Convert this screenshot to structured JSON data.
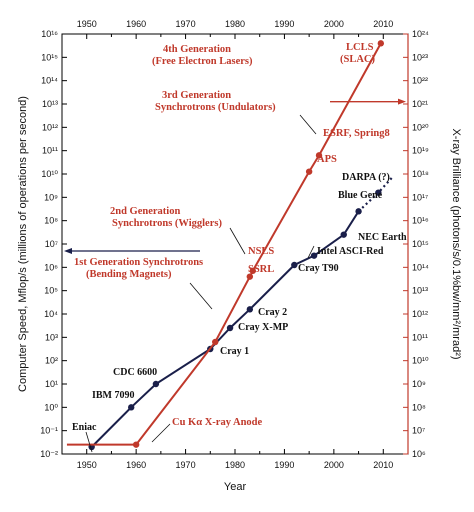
{
  "chart_data": {
    "type": "line",
    "xlabel": "Year",
    "ylabel_left": "Computer Speed, Mflop/s (millions of operations per second)",
    "ylabel_right": "X-ray Brilliance (photons/s/0.1%bw/mm²/mrad²)",
    "xlim": [
      1945,
      2015
    ],
    "x_ticks": [
      "1950",
      "1960",
      "1970",
      "1980",
      "1990",
      "2000",
      "2010"
    ],
    "left_ylim_log10": [
      -2,
      16
    ],
    "right_ylim_log10": [
      6,
      24
    ],
    "left_y_ticks": [
      "10⁻²",
      "10⁻¹",
      "10⁰",
      "10¹",
      "10²",
      "10³",
      "10⁴",
      "10⁵",
      "10⁶",
      "10⁷",
      "10⁸",
      "10⁹",
      "10¹⁰",
      "10¹¹",
      "10¹²",
      "10¹³",
      "10¹⁴",
      "10¹⁵",
      "10¹⁶"
    ],
    "right_y_ticks": [
      "10⁶",
      "10⁷",
      "10⁸",
      "10⁹",
      "10¹⁰",
      "10¹¹",
      "10¹²",
      "10¹³",
      "10¹⁴",
      "10¹⁵",
      "10¹⁶",
      "10¹⁷",
      "10¹⁸",
      "10¹⁹",
      "10²⁰",
      "10²¹",
      "10²²",
      "10²³",
      "10²⁴"
    ],
    "series": [
      {
        "color": "#1a1f4a",
        "axis": "left",
        "points": [
          {
            "x": 1951,
            "y": -1.7,
            "label": "Eniac"
          },
          {
            "x": 1959,
            "y": 0.0,
            "label": "IBM 7090"
          },
          {
            "x": 1964,
            "y": 1.0,
            "label": "CDC 6600"
          },
          {
            "x": 1975,
            "y": 2.5,
            "label": "Cray 1"
          },
          {
            "x": 1979,
            "y": 3.4,
            "label": "Cray X-MP"
          },
          {
            "x": 1983,
            "y": 4.2,
            "label": "Cray 2"
          },
          {
            "x": 1992,
            "y": 6.1,
            "label": "Cray T90"
          },
          {
            "x": 1996,
            "y": 6.5,
            "label": "Intel ASCI-Red"
          },
          {
            "x": 2002,
            "y": 7.4,
            "label": "NEC Earth"
          },
          {
            "x": 2005,
            "y": 8.4,
            "label": "Blue Gene"
          }
        ],
        "projection": [
          {
            "x": 2005,
            "y": 8.4
          },
          {
            "x": 2009,
            "y": 9.2,
            "label": "DARPA (?)"
          },
          {
            "x": 2012,
            "y": 9.9
          }
        ]
      },
      {
        "color": "#c0392b",
        "axis": "right",
        "points": [
          {
            "x": 1946,
            "y": 6.4
          },
          {
            "x": 1960,
            "y": 6.4,
            "label": "Cu Kα X-ray Anode"
          },
          {
            "x": 1976,
            "y": 10.8
          },
          {
            "x": 1983,
            "y": 13.6,
            "label": "NSLS"
          },
          {
            "x": 1983.6,
            "y": 13.85,
            "label": "SSRL"
          },
          {
            "x": 1995,
            "y": 18.1,
            "label": "APS"
          },
          {
            "x": 1997,
            "y": 18.8,
            "label": "ESRF, Spring8"
          },
          {
            "x": 2009.5,
            "y": 23.6,
            "label": "LCLS (SLAC)"
          }
        ]
      }
    ],
    "annotations": {
      "gen4": [
        "4th Generation",
        "(Free Electron Lasers)"
      ],
      "gen3": [
        "3rd Generation",
        "Synchrotrons (Undulators)"
      ],
      "gen2": [
        "2nd Generation",
        "Synchrotrons (Wigglers)"
      ],
      "gen1": [
        "1st Generation Synchrotrons",
        "(Bending Magnets)"
      ],
      "lcls": [
        "LCLS",
        "(SLAC)"
      ],
      "esrf": "ESRF, Spring8",
      "aps": "APS",
      "nsls": "NSLS",
      "ssrl": "SSRL",
      "cu": "Cu Kα X-ray Anode",
      "eniac": "Eniac",
      "ibm": "IBM 7090",
      "cdc": "CDC 6600",
      "cray1": "Cray 1",
      "crayxmp": "Cray X-MP",
      "cray2": "Cray 2",
      "crayt90": "Cray T90",
      "asci": "Intel ASCI-Red",
      "nec": "NEC Earth",
      "bluegene": "Blue Gene",
      "darpa": "DARPA (?)"
    }
  }
}
